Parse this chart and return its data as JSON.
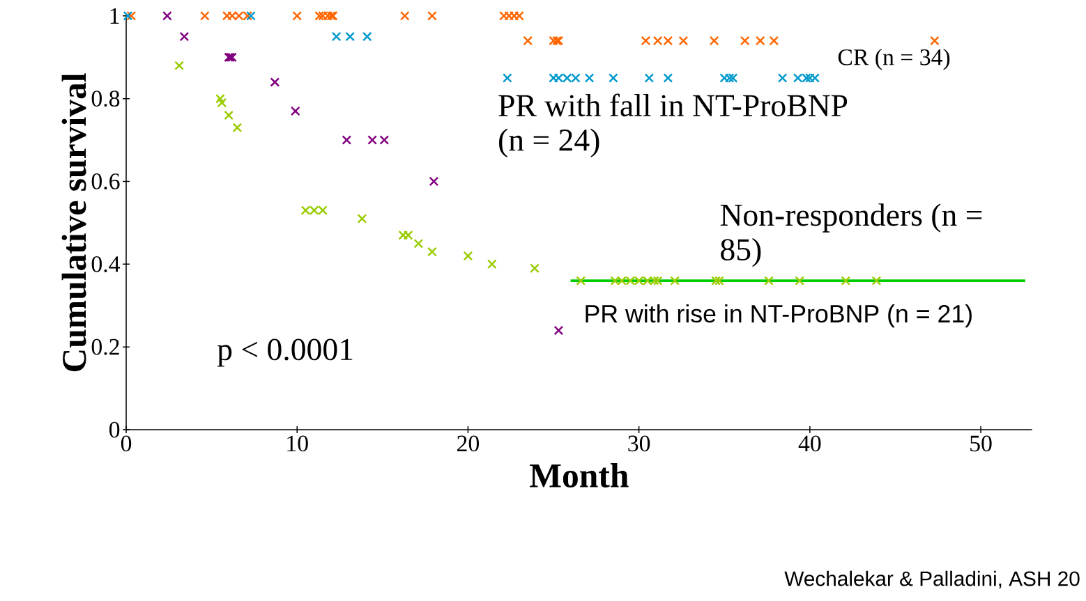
{
  "chart_data": {
    "type": "scatter",
    "xlabel": "Month",
    "ylabel": "Cumulative survival",
    "xlim": [
      0,
      53
    ],
    "xticks": [
      0,
      10,
      20,
      30,
      40,
      50
    ],
    "ylim": [
      0,
      1
    ],
    "yticks": [
      0,
      0.2,
      0.4,
      0.6,
      0.8,
      1
    ],
    "marker": "cross",
    "grid": false,
    "annotations": [
      "p < 0.0001",
      "Wechalekar & Palladini, ASH 20"
    ],
    "series": [
      {
        "name": "CR (n = 34)",
        "color": "#ff6600",
        "x": [
          0.3,
          4.6,
          5.9,
          6.2,
          6.6,
          7.1,
          10.0,
          11.3,
          11.5,
          11.8,
          12.0,
          12.1,
          16.3,
          17.9,
          22.1,
          22.4,
          22.7,
          23.0,
          23.5,
          25.0,
          25.2,
          25.3,
          30.4,
          31.1,
          31.7,
          32.6,
          34.4,
          36.2,
          37.1,
          37.9,
          47.3
        ],
        "values": [
          1,
          1,
          1,
          1,
          1,
          1,
          1,
          1,
          1,
          1,
          1,
          1,
          1,
          1,
          1,
          1,
          1,
          1,
          0.94,
          0.94,
          0.94,
          0.94,
          0.94,
          0.94,
          0.94,
          0.94,
          0.94,
          0.94,
          0.94,
          0.94,
          0.94
        ]
      },
      {
        "name": "PR with fall in NT-ProBNP (n = 24)",
        "color": "#0099cc",
        "x": [
          0.1,
          7.3,
          12.3,
          13.1,
          14.1,
          22.3,
          25.0,
          25.3,
          25.8,
          26.3,
          27.1,
          28.5,
          30.6,
          31.7,
          35.0,
          35.3,
          35.5,
          38.4,
          39.3,
          39.8,
          40.0,
          40.3
        ],
        "values": [
          1,
          1,
          0.95,
          0.95,
          0.95,
          0.85,
          0.85,
          0.85,
          0.85,
          0.85,
          0.85,
          0.85,
          0.85,
          0.85,
          0.85,
          0.85,
          0.85,
          0.85,
          0.85,
          0.85,
          0.85,
          0.85
        ]
      },
      {
        "name": "PR with rise in NT-ProBNP (n = 21)",
        "color": "#800080",
        "x": [
          2.4,
          3.4,
          6.0,
          6.1,
          6.2,
          8.7,
          9.9,
          12.9,
          14.4,
          15.1,
          18.0,
          25.3
        ],
        "values": [
          1,
          0.95,
          0.9,
          0.9,
          0.9,
          0.84,
          0.77,
          0.7,
          0.7,
          0.7,
          0.6,
          0.24
        ]
      },
      {
        "name": "Non-responders (n = 85)",
        "color": "#99cc00",
        "x": [
          3.1,
          5.5,
          5.6,
          6.0,
          6.5,
          10.5,
          11.0,
          11.5,
          13.8,
          16.2,
          16.5,
          17.1,
          17.9,
          20.0,
          21.4,
          23.9,
          26.6,
          28.6,
          29.0,
          29.5,
          30.0,
          30.5,
          30.9,
          31.1,
          32.1,
          34.5,
          34.7,
          37.6,
          39.4,
          42.1,
          43.9
        ],
        "values": [
          0.88,
          0.8,
          0.79,
          0.76,
          0.73,
          0.53,
          0.53,
          0.53,
          0.51,
          0.47,
          0.47,
          0.45,
          0.43,
          0.42,
          0.4,
          0.39,
          0.36,
          0.36,
          0.36,
          0.36,
          0.36,
          0.36,
          0.36,
          0.36,
          0.36,
          0.36,
          0.36,
          0.36,
          0.36,
          0.36,
          0.36
        ]
      },
      {
        "type": "line",
        "marker": "none",
        "color": "#00cc00",
        "x": [
          26.0,
          52.6
        ],
        "values": [
          0.36,
          0.36
        ]
      }
    ]
  }
}
